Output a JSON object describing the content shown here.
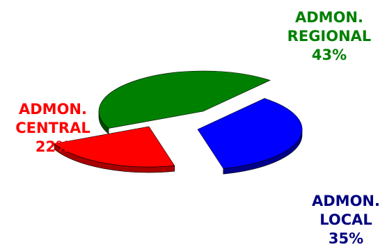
{
  "chart_data": {
    "type": "pie",
    "title": "",
    "slices": [
      {
        "label_line1": "ADMON.",
        "label_line2": "REGIONAL",
        "value": 43,
        "percent_label": "43%",
        "color": "#008000",
        "side_color": "#004d00"
      },
      {
        "label_line1": "ADMON.",
        "label_line2": "LOCAL",
        "value": 35,
        "percent_label": "35%",
        "color": "#0000ff",
        "side_color": "#00008b"
      },
      {
        "label_line1": "ADMON.",
        "label_line2": "CENTRAL",
        "value": 22,
        "percent_label": "22%",
        "color": "#ff0000",
        "side_color": "#a80000"
      }
    ],
    "label_colors": [
      "#008000",
      "#000080",
      "#ff0000"
    ],
    "style": "3d-exploded"
  }
}
